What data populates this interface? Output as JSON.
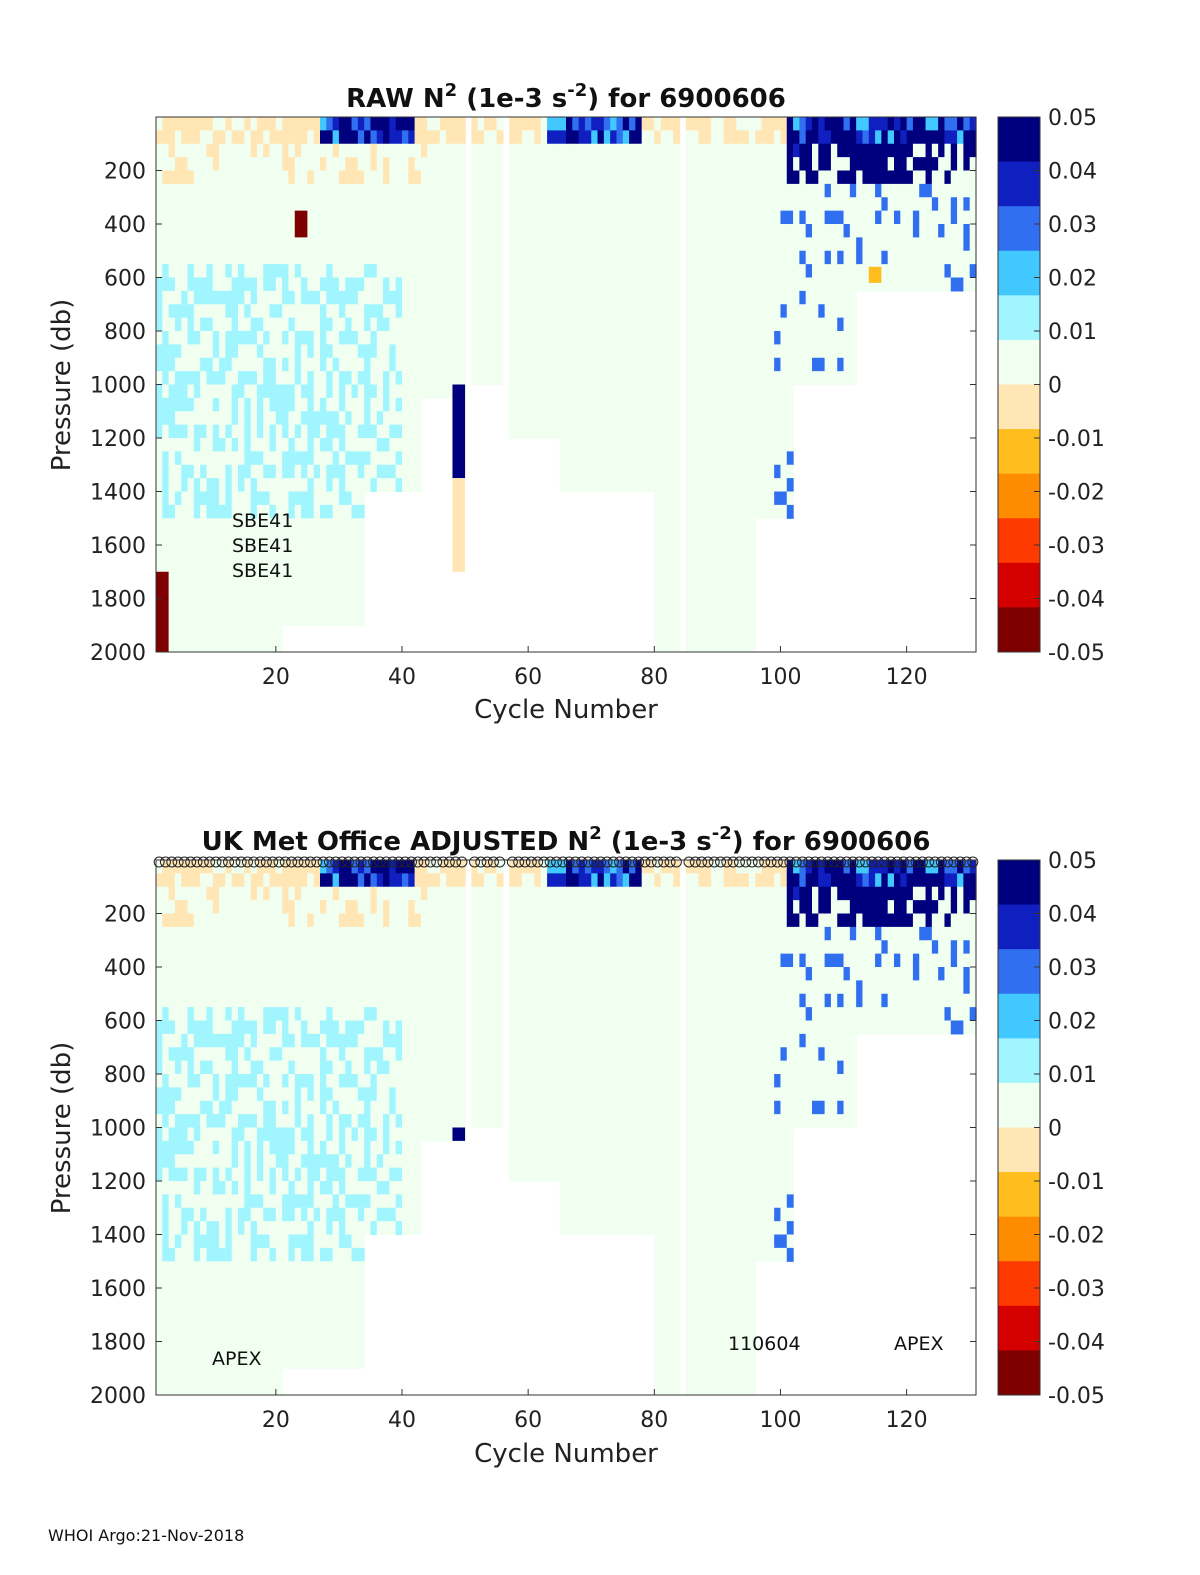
{
  "footer": "WHOI Argo:21-Nov-2018",
  "colormap": [
    "#7f0000",
    "#d40000",
    "#ff3a00",
    "#ff8c00",
    "#ffbe1e",
    "#ffe6b4",
    "#f0fff0",
    "#a0f5ff",
    "#40c8ff",
    "#3070f0",
    "#1020c0",
    "#00007f"
  ],
  "chart_data": [
    {
      "type": "heatmap",
      "title_text": "RAW N",
      "title_sup1": "2",
      "title_mid": " (1e-3 s",
      "title_sup2": "-2",
      "title_end": ") for 6900606",
      "xlabel": "Cycle Number",
      "ylabel": "Pressure (db)",
      "xlim": [
        1,
        130
      ],
      "ylim": [
        2000,
        0
      ],
      "xticks": [
        "20",
        "40",
        "60",
        "80",
        "100",
        "120"
      ],
      "xtick_values": [
        20,
        40,
        60,
        80,
        100,
        120
      ],
      "yticks": [
        "200",
        "400",
        "600",
        "800",
        "1000",
        "1200",
        "1400",
        "1600",
        "1800",
        "2000"
      ],
      "ytick_values": [
        200,
        400,
        600,
        800,
        1000,
        1200,
        1400,
        1600,
        1800,
        2000
      ],
      "colorbar": {
        "range": [
          -0.05,
          0.05
        ],
        "ticks": [
          "0.05",
          "0.04",
          "0.03",
          "0.02",
          "0.01",
          "0",
          "-0.01",
          "-0.02",
          "-0.03",
          "-0.04",
          "-0.05"
        ]
      },
      "annotations": [
        "SBE41",
        "SBE41",
        "SBE41"
      ],
      "max_depth_by_cycle_range": [
        {
          "cycles": [
            1,
            20
          ],
          "max_pressure": 2000
        },
        {
          "cycles": [
            21,
            33
          ],
          "max_pressure": 1900
        },
        {
          "cycles": [
            34,
            42
          ],
          "max_pressure": 1400
        },
        {
          "cycles": [
            43,
            50
          ],
          "max_pressure": 1050
        },
        {
          "cycles": [
            51,
            56
          ],
          "max_pressure": 1000
        },
        {
          "cycles": [
            57,
            64
          ],
          "max_pressure": 1200
        },
        {
          "cycles": [
            65,
            79
          ],
          "max_pressure": 1400
        },
        {
          "cycles": [
            80,
            95
          ],
          "max_pressure": 2000
        },
        {
          "cycles": [
            96,
            101
          ],
          "max_pressure": 1500
        },
        {
          "cycles": [
            102,
            111
          ],
          "max_pressure": 1000
        },
        {
          "cycles": [
            112,
            130
          ],
          "max_pressure": 650
        }
      ],
      "features": [
        {
          "cycle": 48,
          "p_from": 1000,
          "p_to": 1350,
          "value": 0.05
        },
        {
          "cycle": 48,
          "p_from": 1350,
          "p_to": 1700,
          "value": -0.005
        },
        {
          "cycle": 23,
          "p_from": 350,
          "p_to": 450,
          "value": -0.05
        },
        {
          "cycle": 1,
          "p_from": 1700,
          "p_to": 2000,
          "value": -0.05
        },
        {
          "cycle": 114,
          "p_from": 560,
          "p_to": 620,
          "value": -0.012
        }
      ]
    },
    {
      "type": "heatmap",
      "title_text": "UK Met Office  ADJUSTED N",
      "title_sup1": "2",
      "title_mid": " (1e-3 s",
      "title_sup2": "-2",
      "title_end": ") for 6900606",
      "xlabel": "Cycle Number",
      "ylabel": "Pressure (db)",
      "xlim": [
        1,
        130
      ],
      "ylim": [
        2000,
        0
      ],
      "xticks": [
        "20",
        "40",
        "60",
        "80",
        "100",
        "120"
      ],
      "xtick_values": [
        20,
        40,
        60,
        80,
        100,
        120
      ],
      "yticks": [
        "200",
        "400",
        "600",
        "800",
        "1000",
        "1200",
        "1400",
        "1600",
        "1800",
        "2000"
      ],
      "ytick_values": [
        200,
        400,
        600,
        800,
        1000,
        1200,
        1400,
        1600,
        1800,
        2000
      ],
      "colorbar": {
        "range": [
          -0.05,
          0.05
        ],
        "ticks": [
          "0.05",
          "0.04",
          "0.03",
          "0.02",
          "0.01",
          "0",
          "-0.01",
          "-0.02",
          "-0.03",
          "-0.04",
          "-0.05"
        ]
      },
      "annotations": [
        "APEX",
        "110604",
        "APEX"
      ],
      "qc_marker": "o",
      "max_depth_by_cycle_range": [
        {
          "cycles": [
            1,
            20
          ],
          "max_pressure": 2000
        },
        {
          "cycles": [
            21,
            33
          ],
          "max_pressure": 1900
        },
        {
          "cycles": [
            34,
            42
          ],
          "max_pressure": 1400
        },
        {
          "cycles": [
            43,
            50
          ],
          "max_pressure": 1050
        },
        {
          "cycles": [
            51,
            56
          ],
          "max_pressure": 1000
        },
        {
          "cycles": [
            57,
            64
          ],
          "max_pressure": 1200
        },
        {
          "cycles": [
            65,
            79
          ],
          "max_pressure": 1400
        },
        {
          "cycles": [
            80,
            95
          ],
          "max_pressure": 2000
        },
        {
          "cycles": [
            96,
            101
          ],
          "max_pressure": 1500
        },
        {
          "cycles": [
            102,
            111
          ],
          "max_pressure": 1000
        },
        {
          "cycles": [
            112,
            130
          ],
          "max_pressure": 650
        }
      ],
      "features": [
        {
          "cycle": 48,
          "p_from": 1000,
          "p_to": 1050,
          "value": 0.05
        }
      ]
    }
  ]
}
